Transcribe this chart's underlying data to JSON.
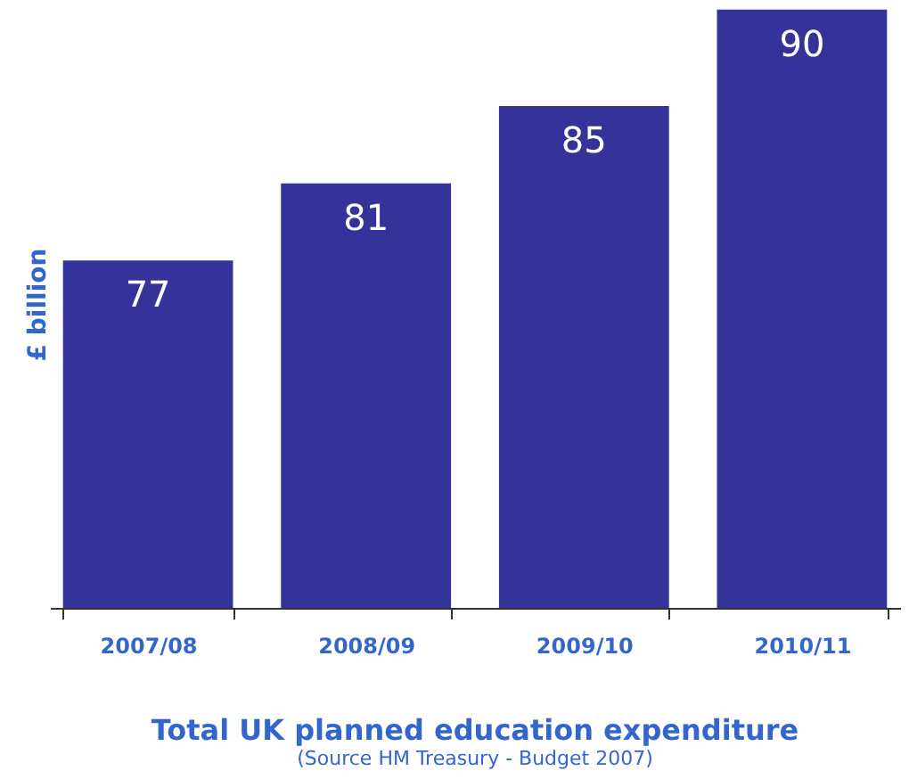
{
  "chart_data": {
    "type": "bar",
    "title": "Total UK planned education expenditure",
    "subtitle": "(Source HM Treasury - Budget 2007)",
    "ylabel": "£ billion",
    "categories": [
      "2007/08",
      "2008/09",
      "2009/10",
      "2010/11"
    ],
    "values": [
      77,
      81,
      85,
      90
    ],
    "color": "#333399",
    "ylim": [
      59,
      90.5
    ],
    "data_labels": true
  }
}
